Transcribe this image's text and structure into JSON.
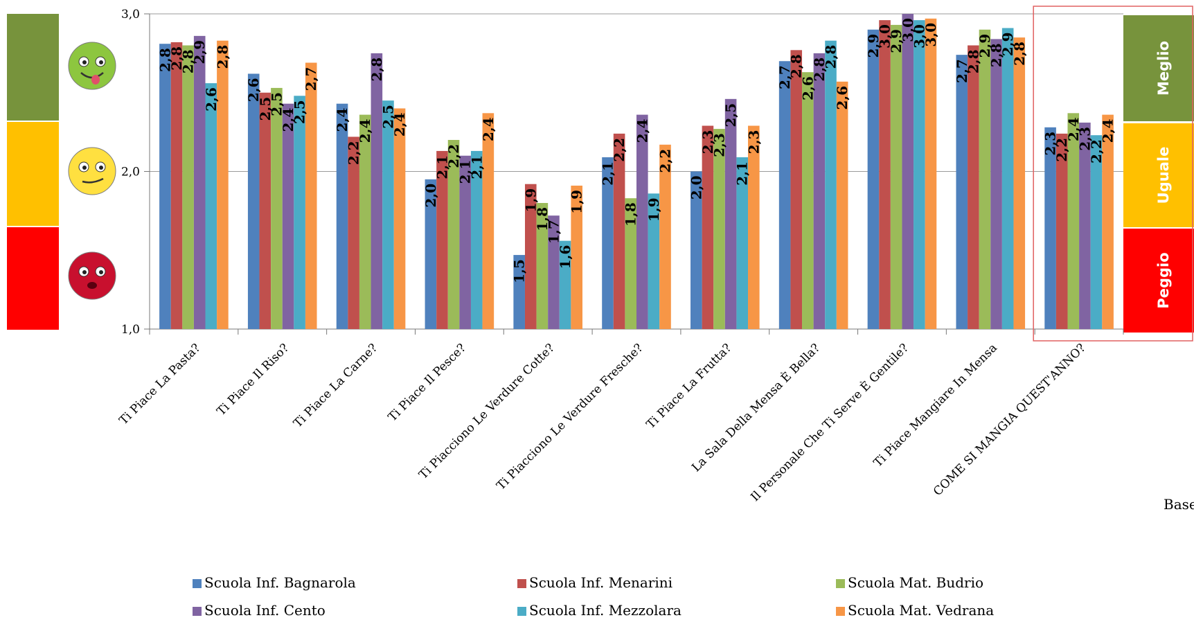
{
  "chart_data": {
    "type": "bar",
    "title": "",
    "xlabel": "",
    "ylabel": "",
    "ylim": [
      1,
      3
    ],
    "yticks": [
      "1,0",
      "2,0",
      "3,0"
    ],
    "grid": true,
    "legend_position": "bottom",
    "categories": [
      "Ti Piace La Pasta?",
      "Ti Piace Il Riso?",
      "Ti Piace La Carne?",
      "Ti Piace Il Pesce?",
      "Ti Piacciono Le Verdure Cotte?",
      "Ti Piacciono Le Verdure Fresche?",
      "Ti Piace La Frutta?",
      "La Sala Della Mensa È Bella?",
      "Il Personale Che Ti Serve È Gentile?",
      "Ti Piace Mangiare In Mensa",
      "COME SI MANGIA QUEST'ANNO?"
    ],
    "series": [
      {
        "name": "Scuola Inf. Bagnarola",
        "color": "#4F81BD",
        "values": [
          2.81,
          2.62,
          2.43,
          1.95,
          1.47,
          2.09,
          2.0,
          2.7,
          2.9,
          2.74,
          2.28
        ],
        "labels": [
          "2,8",
          "2,6",
          "2,4",
          "2,0",
          "1,5",
          "2,1",
          "2,0",
          "2,7",
          "2,9",
          "2,7",
          "2,3"
        ]
      },
      {
        "name": "Scuola Inf. Menarini",
        "color": "#C0504D",
        "values": [
          2.82,
          2.5,
          2.22,
          2.13,
          1.92,
          2.24,
          2.29,
          2.77,
          2.96,
          2.8,
          2.24
        ],
        "labels": [
          "2,8",
          "2,5",
          "2,2",
          "2,1",
          "1,9",
          "2,2",
          "2,3",
          "2,8",
          "3,0",
          "2,8",
          "2,2"
        ]
      },
      {
        "name": "Scuola Mat. Budrio",
        "color": "#9BBB59",
        "values": [
          2.8,
          2.53,
          2.36,
          2.2,
          1.8,
          1.83,
          2.27,
          2.63,
          2.93,
          2.9,
          2.37
        ],
        "labels": [
          "2,8",
          "2,5",
          "2,4",
          "2,2",
          "1,8",
          "1,8",
          "2,3",
          "2,6",
          "2,9",
          "2,9",
          "2,4"
        ]
      },
      {
        "name": "Scuola Inf. Cento",
        "color": "#8064A2",
        "values": [
          2.86,
          2.43,
          2.75,
          2.1,
          1.72,
          2.36,
          2.46,
          2.75,
          3.0,
          2.84,
          2.31
        ],
        "labels": [
          "2,9",
          "2,4",
          "2,8",
          "2,1",
          "1,7",
          "2,4",
          "2,5",
          "2,8",
          "3,0",
          "2,8",
          "2,3"
        ]
      },
      {
        "name": "Scuola Inf. Mezzolara",
        "color": "#4BACC6",
        "values": [
          2.56,
          2.48,
          2.45,
          2.13,
          1.56,
          1.86,
          2.09,
          2.83,
          2.96,
          2.91,
          2.23
        ],
        "labels": [
          "2,6",
          "2,5",
          "2,5",
          "2,1",
          "1,6",
          "1,9",
          "2,1",
          "2,8",
          "3,0",
          "2,9",
          "2,2"
        ]
      },
      {
        "name": "Scuola Mat. Vedrana",
        "color": "#F79646",
        "values": [
          2.83,
          2.69,
          2.4,
          2.37,
          1.91,
          2.17,
          2.29,
          2.57,
          2.97,
          2.85,
          2.36
        ],
        "labels": [
          "2,8",
          "2,7",
          "2,4",
          "2,4",
          "1,9",
          "2,2",
          "2,3",
          "2,6",
          "3,0",
          "2,8",
          "2,4"
        ]
      }
    ],
    "bands": [
      {
        "label": "Meglio",
        "color": "#77933C"
      },
      {
        "label": "Uguale",
        "color": "#FFC000"
      },
      {
        "label": "Peggio",
        "color": "#FF0000"
      }
    ],
    "faces": [
      {
        "icon": "happy-face-icon",
        "color": "#8DC63F"
      },
      {
        "icon": "neutral-face-icon",
        "color": "#FFE040"
      },
      {
        "icon": "sad-face-icon",
        "color": "#C8102E"
      }
    ],
    "highlight_box_color": "#E06060",
    "side_note": "Base"
  }
}
